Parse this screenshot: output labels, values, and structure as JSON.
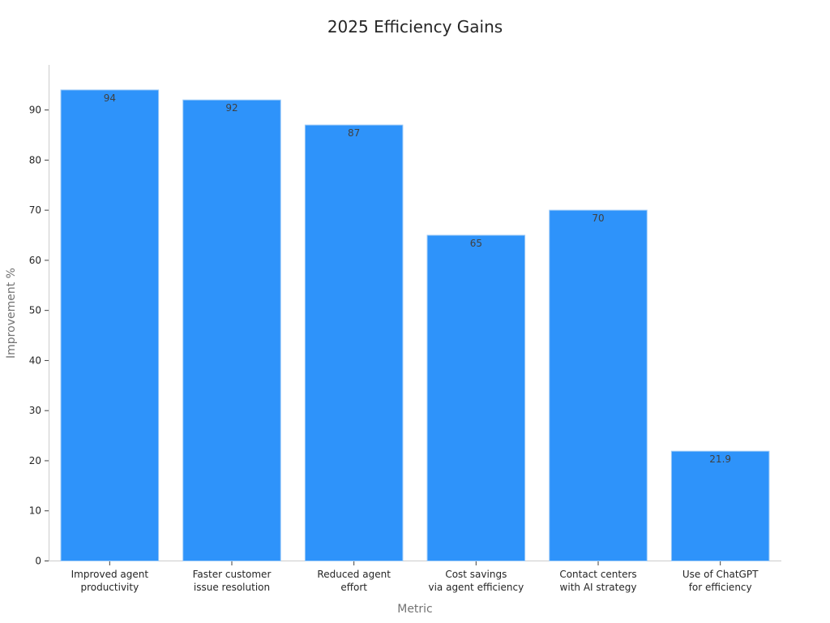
{
  "chart_data": {
    "type": "bar",
    "title": "2025 Efficiency Gains",
    "xlabel": "Metric",
    "ylabel": "Improvement %",
    "categories": [
      [
        "Improved agent",
        "productivity"
      ],
      [
        "Faster customer",
        "issue resolution"
      ],
      [
        "Reduced agent",
        "effort"
      ],
      [
        "Cost savings",
        "via agent efficiency"
      ],
      [
        "Contact centers",
        "with AI strategy"
      ],
      [
        "Use of ChatGPT",
        "for efficiency"
      ]
    ],
    "values": [
      94,
      92,
      87,
      65,
      70,
      21.9
    ],
    "data_labels": [
      "94",
      "92",
      "87",
      "65",
      "70",
      "21.9"
    ],
    "ylim": [
      0,
      99
    ],
    "yticks": [
      0,
      10,
      20,
      30,
      40,
      50,
      60,
      70,
      80,
      90
    ],
    "grid": false,
    "colors": {
      "bar": "#2e93fa",
      "bar_edge": "#9ccaf7"
    }
  }
}
